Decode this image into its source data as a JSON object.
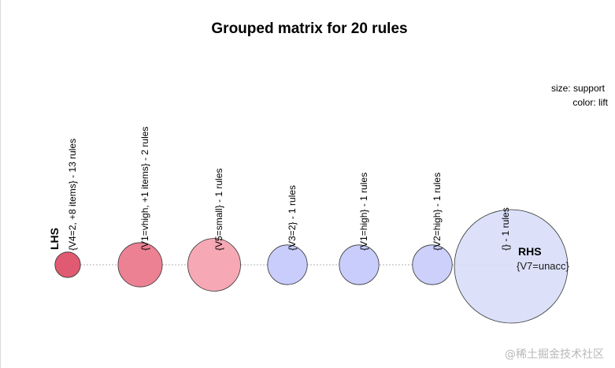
{
  "chart_data": {
    "type": "grouped-matrix",
    "title": "Grouped matrix for 20 rules",
    "legend": {
      "size_label": "size: support",
      "color_label": "color: lift",
      "placement": "top-right"
    },
    "lhs_axis_label": "LHS",
    "rhs_axis_label": "RHS",
    "lhs_groups": [
      {
        "label": "{V4=2, +8 items} - 13 rules",
        "support_rel": 0.45,
        "lift_rel": 1.0
      },
      {
        "label": "{V1=vhigh, +1 items} - 2 rules",
        "support_rel": 0.78,
        "lift_rel": 0.85
      },
      {
        "label": "{V5=small} - 1 rules",
        "support_rel": 0.93,
        "lift_rel": 0.7
      },
      {
        "label": "{V3=2} - 1 rules",
        "support_rel": 0.7,
        "lift_rel": 0.25
      },
      {
        "label": "{V1=high} - 1 rules",
        "support_rel": 0.7,
        "lift_rel": 0.25
      },
      {
        "label": "{V2=high} - 1 rules",
        "support_rel": 0.7,
        "lift_rel": 0.2
      },
      {
        "label": "{} - 1 rules",
        "support_rel": 2.0,
        "lift_rel": 0.0
      }
    ],
    "rhs_items": [
      "{V7=unacc}"
    ],
    "color_scale": {
      "high": "#e05a72",
      "mid": "#f7a8b5",
      "low": "#c9cdfb",
      "lowest": "#d6dcf8"
    }
  },
  "watermark": "@稀土掘金技术社区"
}
